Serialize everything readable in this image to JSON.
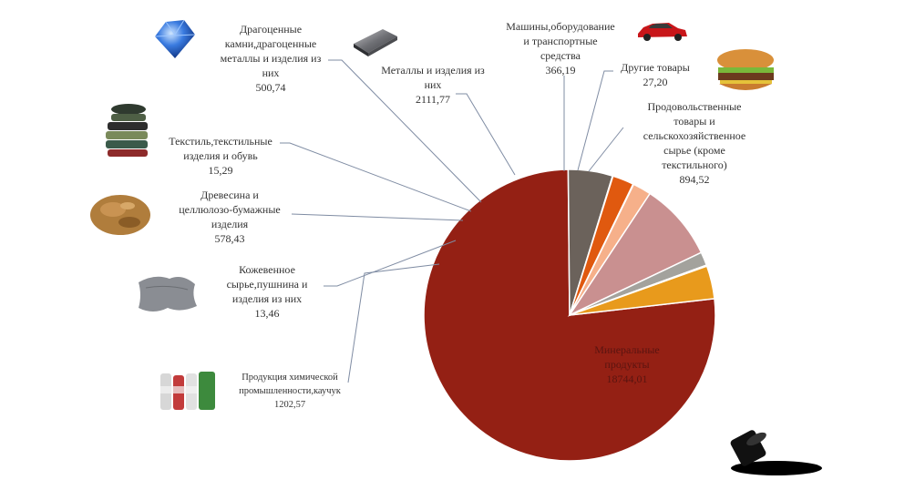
{
  "chart_data": {
    "type": "pie",
    "title": "",
    "slices": [
      {
        "label": "Минеральные продукты",
        "value": "18744,01",
        "v": 18744.01,
        "color": "#942014",
        "icon": "oil-barrel-icon"
      },
      {
        "label": "Продукция химической промышленности,каучук",
        "value": "1202,57",
        "v": 1202.57,
        "color": "#6b625b",
        "icon": "chemical-bottles-icon"
      },
      {
        "label": "Кожевенное сырье,пушнина и изделия из них",
        "value": "13,46",
        "v": 13.46,
        "color": "#8e3a2a",
        "icon": "leather-hide-icon"
      },
      {
        "label": "Древесина и целлюлозо-бумажные изделия",
        "value": "578,43",
        "v": 578.43,
        "color": "#e0590f",
        "icon": "wood-chips-icon"
      },
      {
        "label": "Текстиль,текстильные изделия и обувь",
        "value": "15,29",
        "v": 15.29,
        "color": "#3e566f",
        "icon": "textile-stack-icon"
      },
      {
        "label": "Драгоценные камни,драгоценные металлы и изделия из них",
        "value": "500,74",
        "v": 500.74,
        "color": "#f6b08a",
        "icon": "gem-icon"
      },
      {
        "label": "Металлы и изделия из них",
        "value": "2111,77",
        "v": 2111.77,
        "color": "#c99090",
        "icon": "metal-plate-icon"
      },
      {
        "label": "Машины,оборудование и транспортные средства",
        "value": "366,19",
        "v": 366.19,
        "color": "#a3a29d",
        "icon": "car-icon"
      },
      {
        "label": "Другие товары",
        "value": "27,20",
        "v": 27.2,
        "color": "#2f6f9a",
        "icon": "burger-icon"
      },
      {
        "label": "Продовольственные товары и сельскохозяйственное сырье (кроме текстильного)",
        "value": "894,52",
        "v": 894.52,
        "color": "#e89a1c",
        "icon": "food-icon"
      }
    ]
  }
}
